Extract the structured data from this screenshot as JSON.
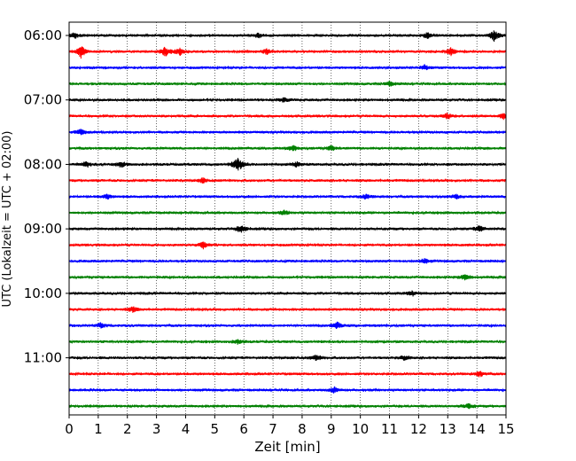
{
  "chart_data": {
    "type": "line",
    "title": "",
    "xlabel": "Zeit  [min]",
    "ylabel": "UTC (Lokalzeit = UTC + 02:00)",
    "xlim": [
      0,
      15
    ],
    "x_ticks": [
      0,
      1,
      2,
      3,
      4,
      5,
      6,
      7,
      8,
      9,
      10,
      11,
      12,
      13,
      14,
      15
    ],
    "y_ticks": [
      {
        "label": "06:00",
        "trace_index": 0
      },
      {
        "label": "07:00",
        "trace_index": 4
      },
      {
        "label": "08:00",
        "trace_index": 8
      },
      {
        "label": "09:00",
        "trace_index": 12
      },
      {
        "label": "10:00",
        "trace_index": 16
      },
      {
        "label": "11:00",
        "trace_index": 20
      }
    ],
    "grid": "x-dotted",
    "trace_colors": [
      "#000000",
      "#ff0000",
      "#0000ff",
      "#008000"
    ],
    "traces": [
      {
        "start": "06:00",
        "color": "#000000",
        "events": [
          [
            0.2,
            3
          ],
          [
            6.5,
            2.2
          ],
          [
            12.3,
            3
          ],
          [
            14.6,
            6
          ]
        ]
      },
      {
        "start": "06:15",
        "color": "#ff0000",
        "events": [
          [
            0.4,
            7
          ],
          [
            3.3,
            5
          ],
          [
            3.8,
            4
          ],
          [
            6.8,
            3
          ],
          [
            13.1,
            4
          ]
        ]
      },
      {
        "start": "06:30",
        "color": "#0000ff",
        "events": [
          [
            12.2,
            2.5
          ]
        ]
      },
      {
        "start": "06:45",
        "color": "#008000",
        "events": [
          [
            11,
            2.5
          ]
        ]
      },
      {
        "start": "07:00",
        "color": "#000000",
        "events": [
          [
            7.4,
            2.5
          ]
        ]
      },
      {
        "start": "07:15",
        "color": "#ff0000",
        "events": [
          [
            13,
            3
          ],
          [
            14.9,
            3
          ]
        ]
      },
      {
        "start": "07:30",
        "color": "#0000ff",
        "events": [
          [
            0.4,
            3
          ]
        ]
      },
      {
        "start": "07:45",
        "color": "#008000",
        "events": [
          [
            7.7,
            3
          ],
          [
            9,
            2.5
          ]
        ]
      },
      {
        "start": "08:00",
        "color": "#000000",
        "events": [
          [
            0.6,
            3
          ],
          [
            1.8,
            3
          ],
          [
            5.8,
            9
          ],
          [
            7.8,
            2.5
          ]
        ]
      },
      {
        "start": "08:15",
        "color": "#ff0000",
        "events": [
          [
            4.6,
            2.5
          ]
        ]
      },
      {
        "start": "08:30",
        "color": "#0000ff",
        "events": [
          [
            1.3,
            2.5
          ],
          [
            10.2,
            2.5
          ],
          [
            13.3,
            2.5
          ]
        ]
      },
      {
        "start": "08:45",
        "color": "#008000",
        "events": [
          [
            7.4,
            2.5
          ]
        ]
      },
      {
        "start": "09:00",
        "color": "#000000",
        "events": [
          [
            5.9,
            4.5
          ],
          [
            14.1,
            3.5
          ]
        ]
      },
      {
        "start": "09:15",
        "color": "#ff0000",
        "events": [
          [
            4.6,
            3.5
          ]
        ]
      },
      {
        "start": "09:30",
        "color": "#0000ff",
        "events": [
          [
            12.2,
            2.5
          ]
        ]
      },
      {
        "start": "09:45",
        "color": "#008000",
        "events": [
          [
            13.6,
            3.5
          ]
        ]
      },
      {
        "start": "10:00",
        "color": "#000000",
        "events": [
          [
            11.8,
            2.5
          ]
        ]
      },
      {
        "start": "10:15",
        "color": "#ff0000",
        "events": [
          [
            2.2,
            3
          ]
        ]
      },
      {
        "start": "10:30",
        "color": "#0000ff",
        "events": [
          [
            9.2,
            3.5
          ],
          [
            1.1,
            2.5
          ]
        ]
      },
      {
        "start": "10:45",
        "color": "#008000",
        "events": [
          [
            5.8,
            2.5
          ]
        ]
      },
      {
        "start": "11:00",
        "color": "#000000",
        "events": [
          [
            8.5,
            3.5
          ],
          [
            11.5,
            2.5
          ]
        ]
      },
      {
        "start": "11:15",
        "color": "#ff0000",
        "events": [
          [
            14.1,
            3
          ]
        ]
      },
      {
        "start": "11:30",
        "color": "#0000ff",
        "events": [
          [
            9.1,
            3
          ]
        ]
      },
      {
        "start": "11:45",
        "color": "#008000",
        "events": [
          [
            13.7,
            3.5
          ]
        ]
      }
    ]
  }
}
